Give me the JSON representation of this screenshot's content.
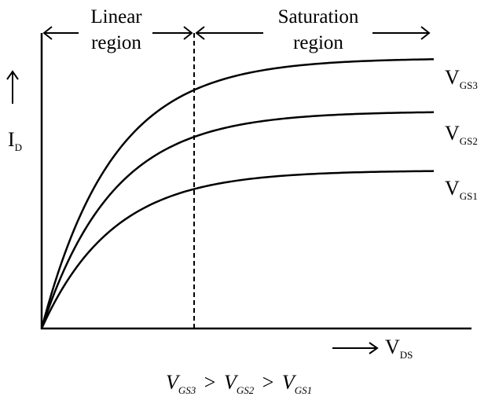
{
  "chart_data": {
    "type": "line",
    "title": "",
    "xlabel": {
      "main": "V",
      "sub": "DS"
    },
    "ylabel": {
      "main": "I",
      "sub": "D"
    },
    "regions": [
      {
        "line1": "Linear",
        "line2": "region"
      },
      {
        "line1": "Saturation",
        "line2": "region"
      }
    ],
    "boundary_x": 0.35,
    "xlim": [
      0,
      1
    ],
    "ylim": [
      0,
      1
    ],
    "series": [
      {
        "name": "V_GS3",
        "label_main": "V",
        "label_sub": "GS3",
        "saturation": 0.915,
        "k": 5.5
      },
      {
        "name": "V_GS2",
        "label_main": "V",
        "label_sub": "GS2",
        "saturation": 0.735,
        "k": 5.5
      },
      {
        "name": "V_GS1",
        "label_main": "V",
        "label_sub": "GS1",
        "saturation": 0.535,
        "k": 5.5
      }
    ],
    "caption": {
      "terms": [
        {
          "main": "V",
          "sub": "GS3"
        },
        {
          "main": "V",
          "sub": "GS2"
        },
        {
          "main": "V",
          "sub": "GS1"
        }
      ],
      "operator": ">"
    },
    "line_color": "#000000"
  }
}
